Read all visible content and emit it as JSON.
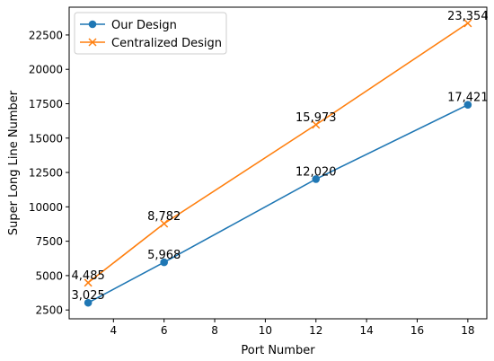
{
  "chart_data": {
    "type": "line",
    "title": "",
    "xlabel": "Port Number",
    "ylabel": "Super Long Line Number",
    "x": [
      3,
      6,
      12,
      18
    ],
    "xticks": [
      "4",
      "6",
      "8",
      "10",
      "12",
      "14",
      "16",
      "18"
    ],
    "yticks": [
      "2500",
      "5000",
      "7500",
      "10000",
      "12500",
      "15000",
      "17500",
      "20000",
      "22500"
    ],
    "xlim": [
      2.25,
      18.75
    ],
    "ylim": [
      1858.55,
      24520.45
    ],
    "grid": false,
    "legend_position": "upper left",
    "series": [
      {
        "name": "Our Design",
        "values": [
          3025,
          5968,
          12020,
          17421
        ],
        "labels": [
          "3,025",
          "5,968",
          "12,020",
          "17,421"
        ],
        "color": "#1f77b4",
        "marker": "circle"
      },
      {
        "name": "Centralized Design",
        "values": [
          4485,
          8782,
          15973,
          23354
        ],
        "labels": [
          "4,485",
          "8,782",
          "15,973",
          "23,354"
        ],
        "color": "#ff7f0e",
        "marker": "x"
      }
    ]
  }
}
